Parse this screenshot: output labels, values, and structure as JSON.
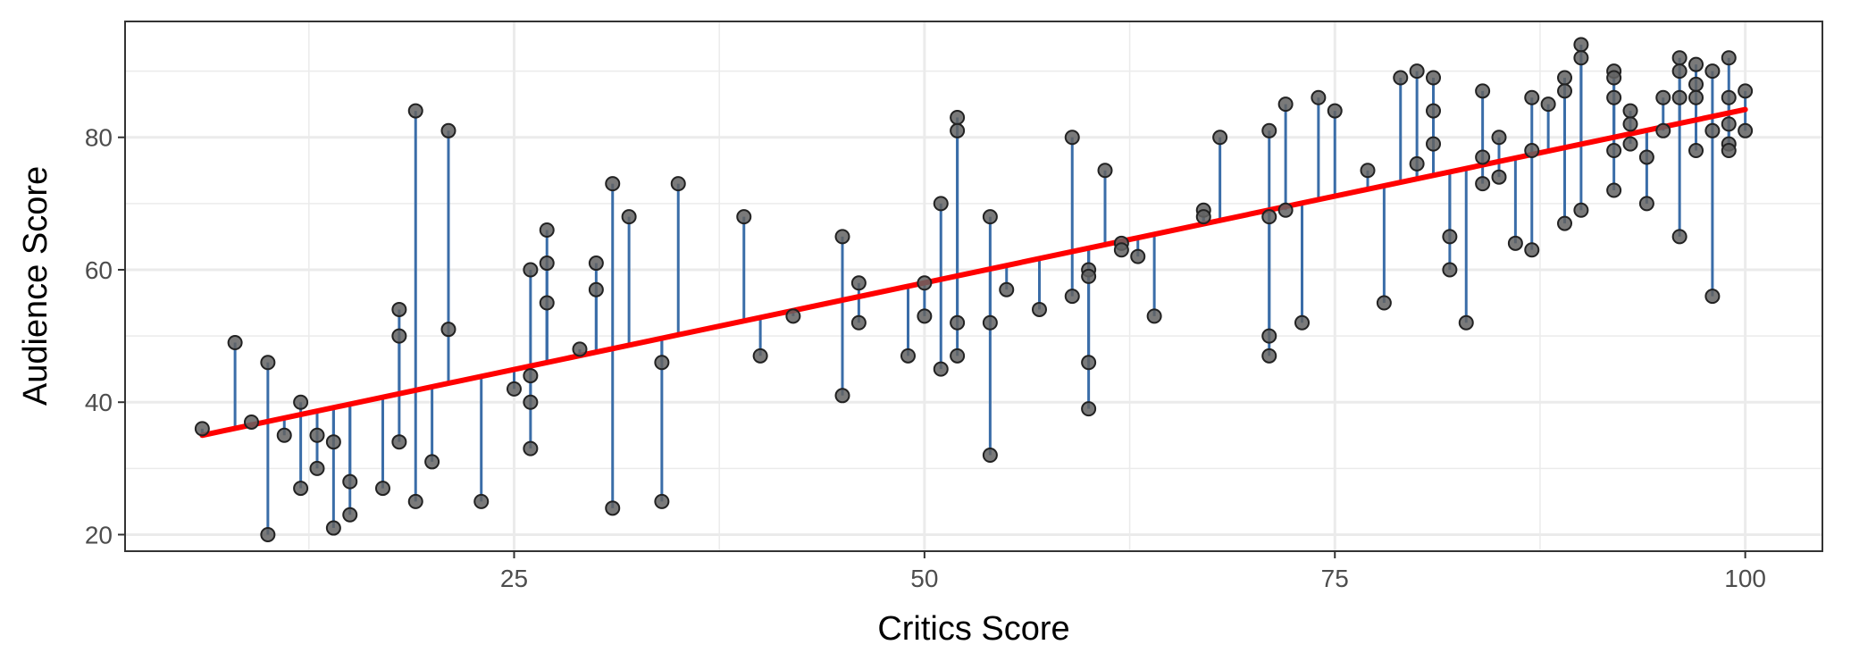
{
  "chart_data": {
    "type": "scatter",
    "title": "",
    "xlabel": "Critics Score",
    "ylabel": "Audience Score",
    "xlim": [
      1.3,
      104.7
    ],
    "ylim": [
      17.5,
      97.5
    ],
    "x_ticks": [
      25,
      50,
      75,
      100
    ],
    "y_ticks": [
      20,
      40,
      60,
      80
    ],
    "x_tick_labels": [
      "25",
      "50",
      "75",
      "100"
    ],
    "y_tick_labels": [
      "20",
      "40",
      "60",
      "80"
    ],
    "grid": true,
    "legend": "none",
    "fit_line": {
      "x": [
        6,
        100
      ],
      "y": [
        35,
        84.2
      ],
      "color": "#ff0000"
    },
    "colors": {
      "points": "#636363",
      "point_edge": "#222222",
      "residuals": "#3a6da8",
      "fit": "#ff0000",
      "panel_border": "#333333",
      "grid": "#ebebeb"
    },
    "points": [
      {
        "x": 6,
        "y": 36
      },
      {
        "x": 8,
        "y": 49
      },
      {
        "x": 9,
        "y": 37
      },
      {
        "x": 10,
        "y": 46
      },
      {
        "x": 10,
        "y": 20
      },
      {
        "x": 11,
        "y": 35
      },
      {
        "x": 12,
        "y": 40
      },
      {
        "x": 12,
        "y": 27
      },
      {
        "x": 13,
        "y": 35
      },
      {
        "x": 13,
        "y": 30
      },
      {
        "x": 14,
        "y": 34
      },
      {
        "x": 14,
        "y": 21
      },
      {
        "x": 15,
        "y": 28
      },
      {
        "x": 15,
        "y": 23
      },
      {
        "x": 17,
        "y": 27
      },
      {
        "x": 18,
        "y": 54
      },
      {
        "x": 18,
        "y": 50
      },
      {
        "x": 18,
        "y": 34
      },
      {
        "x": 19,
        "y": 84
      },
      {
        "x": 19,
        "y": 25
      },
      {
        "x": 20,
        "y": 31
      },
      {
        "x": 21,
        "y": 81
      },
      {
        "x": 21,
        "y": 51
      },
      {
        "x": 23,
        "y": 25
      },
      {
        "x": 25,
        "y": 42
      },
      {
        "x": 26,
        "y": 60
      },
      {
        "x": 26,
        "y": 44
      },
      {
        "x": 26,
        "y": 40
      },
      {
        "x": 26,
        "y": 33
      },
      {
        "x": 27,
        "y": 66
      },
      {
        "x": 27,
        "y": 61
      },
      {
        "x": 27,
        "y": 55
      },
      {
        "x": 29,
        "y": 48
      },
      {
        "x": 30,
        "y": 61
      },
      {
        "x": 30,
        "y": 57
      },
      {
        "x": 31,
        "y": 73
      },
      {
        "x": 31,
        "y": 24
      },
      {
        "x": 32,
        "y": 68
      },
      {
        "x": 34,
        "y": 46
      },
      {
        "x": 34,
        "y": 25
      },
      {
        "x": 35,
        "y": 73
      },
      {
        "x": 39,
        "y": 68
      },
      {
        "x": 40,
        "y": 47
      },
      {
        "x": 42,
        "y": 53
      },
      {
        "x": 45,
        "y": 65
      },
      {
        "x": 45,
        "y": 41
      },
      {
        "x": 46,
        "y": 58
      },
      {
        "x": 46,
        "y": 52
      },
      {
        "x": 49,
        "y": 47
      },
      {
        "x": 50,
        "y": 58
      },
      {
        "x": 50,
        "y": 53
      },
      {
        "x": 51,
        "y": 70
      },
      {
        "x": 51,
        "y": 45
      },
      {
        "x": 52,
        "y": 83
      },
      {
        "x": 52,
        "y": 81
      },
      {
        "x": 52,
        "y": 52
      },
      {
        "x": 52,
        "y": 47
      },
      {
        "x": 54,
        "y": 68
      },
      {
        "x": 54,
        "y": 52
      },
      {
        "x": 54,
        "y": 32
      },
      {
        "x": 55,
        "y": 57
      },
      {
        "x": 57,
        "y": 54
      },
      {
        "x": 59,
        "y": 80
      },
      {
        "x": 59,
        "y": 56
      },
      {
        "x": 60,
        "y": 60
      },
      {
        "x": 60,
        "y": 59
      },
      {
        "x": 60,
        "y": 46
      },
      {
        "x": 60,
        "y": 39
      },
      {
        "x": 61,
        "y": 75
      },
      {
        "x": 62,
        "y": 64
      },
      {
        "x": 62,
        "y": 63
      },
      {
        "x": 63,
        "y": 62
      },
      {
        "x": 64,
        "y": 53
      },
      {
        "x": 67,
        "y": 69
      },
      {
        "x": 67,
        "y": 68
      },
      {
        "x": 68,
        "y": 80
      },
      {
        "x": 71,
        "y": 81
      },
      {
        "x": 71,
        "y": 68
      },
      {
        "x": 71,
        "y": 50
      },
      {
        "x": 71,
        "y": 47
      },
      {
        "x": 72,
        "y": 85
      },
      {
        "x": 72,
        "y": 69
      },
      {
        "x": 73,
        "y": 52
      },
      {
        "x": 74,
        "y": 86
      },
      {
        "x": 75,
        "y": 84
      },
      {
        "x": 77,
        "y": 75
      },
      {
        "x": 78,
        "y": 55
      },
      {
        "x": 79,
        "y": 89
      },
      {
        "x": 80,
        "y": 90
      },
      {
        "x": 80,
        "y": 76
      },
      {
        "x": 81,
        "y": 89
      },
      {
        "x": 81,
        "y": 84
      },
      {
        "x": 81,
        "y": 79
      },
      {
        "x": 82,
        "y": 65
      },
      {
        "x": 82,
        "y": 60
      },
      {
        "x": 83,
        "y": 52
      },
      {
        "x": 84,
        "y": 87
      },
      {
        "x": 84,
        "y": 77
      },
      {
        "x": 84,
        "y": 73
      },
      {
        "x": 85,
        "y": 80
      },
      {
        "x": 85,
        "y": 74
      },
      {
        "x": 86,
        "y": 64
      },
      {
        "x": 87,
        "y": 86
      },
      {
        "x": 87,
        "y": 78
      },
      {
        "x": 87,
        "y": 63
      },
      {
        "x": 88,
        "y": 85
      },
      {
        "x": 89,
        "y": 89
      },
      {
        "x": 89,
        "y": 87
      },
      {
        "x": 89,
        "y": 67
      },
      {
        "x": 90,
        "y": 94
      },
      {
        "x": 90,
        "y": 92
      },
      {
        "x": 90,
        "y": 69
      },
      {
        "x": 92,
        "y": 90
      },
      {
        "x": 92,
        "y": 89
      },
      {
        "x": 92,
        "y": 86
      },
      {
        "x": 92,
        "y": 78
      },
      {
        "x": 92,
        "y": 72
      },
      {
        "x": 93,
        "y": 84
      },
      {
        "x": 93,
        "y": 82
      },
      {
        "x": 93,
        "y": 79
      },
      {
        "x": 94,
        "y": 77
      },
      {
        "x": 94,
        "y": 70
      },
      {
        "x": 95,
        "y": 86
      },
      {
        "x": 95,
        "y": 81
      },
      {
        "x": 96,
        "y": 92
      },
      {
        "x": 96,
        "y": 90
      },
      {
        "x": 96,
        "y": 86
      },
      {
        "x": 96,
        "y": 65
      },
      {
        "x": 97,
        "y": 91
      },
      {
        "x": 97,
        "y": 88
      },
      {
        "x": 97,
        "y": 86
      },
      {
        "x": 97,
        "y": 78
      },
      {
        "x": 98,
        "y": 90
      },
      {
        "x": 98,
        "y": 81
      },
      {
        "x": 98,
        "y": 56
      },
      {
        "x": 99,
        "y": 92
      },
      {
        "x": 99,
        "y": 86
      },
      {
        "x": 99,
        "y": 82
      },
      {
        "x": 99,
        "y": 79
      },
      {
        "x": 99,
        "y": 78
      },
      {
        "x": 100,
        "y": 87
      },
      {
        "x": 100,
        "y": 81
      }
    ]
  }
}
